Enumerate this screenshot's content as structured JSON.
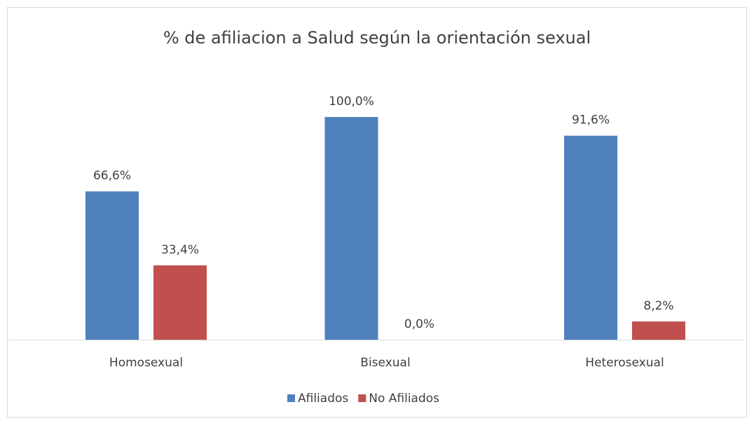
{
  "chart_data": {
    "type": "bar",
    "title": "% de afiliacion a Salud según la orientación sexual",
    "categories": [
      "Homosexual",
      "Bisexual",
      "Heterosexual"
    ],
    "series": [
      {
        "name": "Afiliados",
        "color": "#4f81bd",
        "values": [
          66.6,
          100.0,
          91.6
        ],
        "value_labels": [
          "66,6%",
          "100,0%",
          "91,6%"
        ]
      },
      {
        "name": "No Afiliados",
        "color": "#c0504d",
        "values": [
          33.4,
          0.0,
          8.2
        ],
        "value_labels": [
          "33,4%",
          "0,0%",
          "8,2%"
        ]
      }
    ],
    "legend": "bottom"
  }
}
